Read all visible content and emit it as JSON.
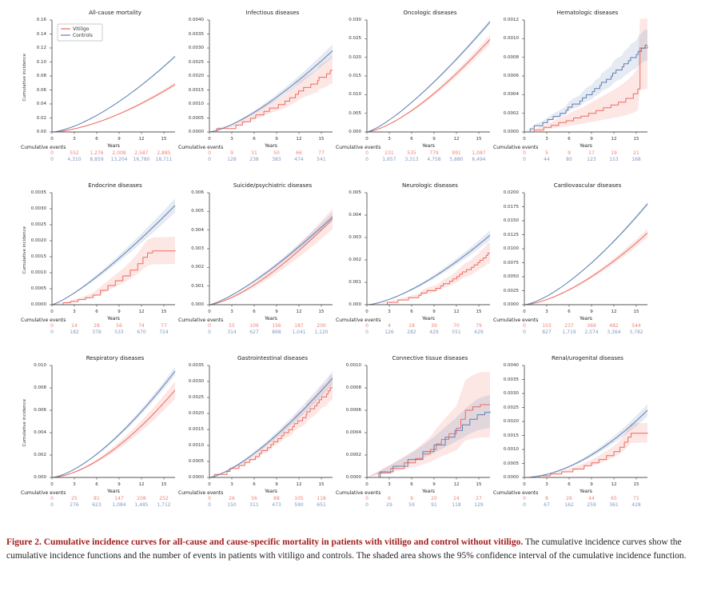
{
  "figure": {
    "caption_lead": "Figure 2. Cumulative incidence curves for all-cause and cause-specific mortality in patients with vitiligo and control without vitiligo.",
    "caption_body": " The cumulative incidence curves show the cumulative incidence functions and the number of events in patients with vitiligo and controls. The shaded area shows the 95% confidence interval of the cumulative incidence function."
  },
  "labels": {
    "ylabel": "Cumulative incidence",
    "xlabel": "Years",
    "events_label": "Cumulative events",
    "legend": [
      "Vitiligo",
      "Controls"
    ]
  },
  "colors": {
    "vitiligo": "#ee6a5f",
    "controls": "#5f7fb2",
    "vitiligo_fill": "rgba(238,106,95,0.16)",
    "controls_fill": "rgba(95,127,178,0.16)",
    "vitiligo_text": "#f0837b",
    "controls_text": "#8199c5",
    "caption_red": "#a41d1d",
    "axis": "#555555"
  },
  "chart_data": {
    "type": "line",
    "x_ticks": [
      0,
      3,
      6,
      9,
      12,
      15
    ],
    "x_max": 16.5,
    "panels": [
      {
        "title": "All-cause mortality",
        "ymax": 0.16,
        "ystep": 0.02,
        "ydecimals": 2,
        "legend": true,
        "series": [
          {
            "name": "Vitiligo",
            "shape": "smooth",
            "end": 0.068,
            "exp": 1.6,
            "ci": 0.04,
            "events": [
              "0",
              "552",
              "1,276",
              "2,008",
              "2,587",
              "2,885"
            ]
          },
          {
            "name": "Controls",
            "shape": "smooth",
            "end": 0.108,
            "exp": 1.5,
            "ci": 0.015,
            "events": [
              "0",
              "4,310",
              "8,859",
              "13,204",
              "16,780",
              "18,711"
            ]
          }
        ]
      },
      {
        "title": "Infectious diseases",
        "ymax": 0.004,
        "ystep": 0.0005,
        "ydecimals": 4,
        "legend": false,
        "series": [
          {
            "name": "Vitiligo",
            "shape": "step",
            "steps": 18,
            "end": 0.0022,
            "exp": 1.45,
            "ci": 0.22,
            "events": [
              "0",
              "9",
              "31",
              "50",
              "66",
              "77"
            ]
          },
          {
            "name": "Controls",
            "shape": "smooth",
            "end": 0.0029,
            "exp": 1.4,
            "ci": 0.08,
            "events": [
              "0",
              "128",
              "238",
              "383",
              "474",
              "541"
            ]
          }
        ]
      },
      {
        "title": "Oncologic diseases",
        "ymax": 0.03,
        "ystep": 0.005,
        "ydecimals": 3,
        "legend": false,
        "series": [
          {
            "name": "Vitiligo",
            "shape": "smooth",
            "end": 0.0248,
            "exp": 1.45,
            "ci": 0.05,
            "events": [
              "0",
              "231",
              "535",
              "779",
              "991",
              "1,087"
            ]
          },
          {
            "name": "Controls",
            "shape": "smooth",
            "end": 0.0295,
            "exp": 1.3,
            "ci": 0.02,
            "events": [
              "0",
              "1,657",
              "3,313",
              "4,758",
              "5,880",
              "6,494"
            ]
          }
        ]
      },
      {
        "title": "Hematologic diseases",
        "ymax": 0.0012,
        "ystep": 0.0002,
        "ydecimals": 4,
        "legend": false,
        "series": [
          {
            "name": "Vitiligo",
            "shape": "step",
            "ci": 0.5,
            "end": 0.00092,
            "points": [
              [
                0,
                0
              ],
              [
                1.3,
                2e-05
              ],
              [
                2.6,
                5e-05
              ],
              [
                3.6,
                7e-05
              ],
              [
                4.6,
                0.0001
              ],
              [
                5.6,
                0.00012
              ],
              [
                6.6,
                0.00015
              ],
              [
                7.6,
                0.00017
              ],
              [
                8.6,
                0.0002
              ],
              [
                9.6,
                0.00023
              ],
              [
                10.6,
                0.00026
              ],
              [
                11.6,
                0.00029
              ],
              [
                12.6,
                0.00032
              ],
              [
                13.6,
                0.00036
              ],
              [
                14.6,
                0.00041
              ],
              [
                15.2,
                0.00046
              ],
              [
                15.5,
                0.0009
              ],
              [
                16.5,
                0.00092
              ]
            ],
            "events": [
              "0",
              "5",
              "9",
              "17",
              "19",
              "21"
            ]
          },
          {
            "name": "Controls",
            "shape": "step",
            "steps": 28,
            "end": 0.00093,
            "exp": 1.3,
            "ci": 0.18,
            "events": [
              "0",
              "44",
              "80",
              "123",
              "153",
              "168"
            ]
          }
        ]
      },
      {
        "title": "Endocrine diseases",
        "ymax": 0.0035,
        "ystep": 0.0005,
        "ydecimals": 4,
        "legend": false,
        "series": [
          {
            "name": "Vitiligo",
            "shape": "step",
            "ci": 0.25,
            "end": 0.0017,
            "points": [
              [
                0,
                0
              ],
              [
                1.5,
                6e-05
              ],
              [
                2.5,
                0.0001
              ],
              [
                3.5,
                0.00016
              ],
              [
                4.5,
                0.00022
              ],
              [
                5.5,
                0.0003
              ],
              [
                6.5,
                0.00045
              ],
              [
                7.5,
                0.0006
              ],
              [
                8.5,
                0.00075
              ],
              [
                9.5,
                0.0009
              ],
              [
                10.5,
                0.00108
              ],
              [
                11.5,
                0.00128
              ],
              [
                12.2,
                0.00148
              ],
              [
                12.8,
                0.00162
              ],
              [
                13.5,
                0.00168
              ],
              [
                16.5,
                0.0017
              ]
            ],
            "events": [
              "0",
              "14",
              "28",
              "56",
              "74",
              "77"
            ]
          },
          {
            "name": "Controls",
            "shape": "smooth",
            "end": 0.0031,
            "exp": 1.25,
            "ci": 0.07,
            "events": [
              "0",
              "182",
              "378",
              "533",
              "670",
              "724"
            ]
          }
        ]
      },
      {
        "title": "Suicide/psychiatric diseases",
        "ymax": 0.006,
        "ystep": 0.001,
        "ydecimals": 3,
        "legend": false,
        "series": [
          {
            "name": "Vitiligo",
            "shape": "smooth",
            "end": 0.0046,
            "exp": 1.45,
            "ci": 0.12,
            "events": [
              "0",
              "55",
              "109",
              "156",
              "187",
              "200"
            ]
          },
          {
            "name": "Controls",
            "shape": "smooth",
            "end": 0.0047,
            "exp": 1.3,
            "ci": 0.05,
            "events": [
              "0",
              "314",
              "627",
              "868",
              "1,041",
              "1,120"
            ]
          }
        ]
      },
      {
        "title": "Neurologic diseases",
        "ymax": 0.005,
        "ystep": 0.001,
        "ydecimals": 3,
        "legend": false,
        "series": [
          {
            "name": "Vitiligo",
            "shape": "step",
            "steps": 22,
            "end": 0.0023,
            "exp": 2.0,
            "ci": 0.2,
            "events": [
              "0",
              "4",
              "18",
              "39",
              "70",
              "79"
            ]
          },
          {
            "name": "Controls",
            "shape": "smooth",
            "end": 0.0031,
            "exp": 1.5,
            "ci": 0.07,
            "events": [
              "0",
              "126",
              "282",
              "429",
              "551",
              "629"
            ]
          }
        ]
      },
      {
        "title": "Cardiovascular diseases",
        "ymax": 0.02,
        "ystep": 0.0025,
        "ydecimals": 4,
        "legend": false,
        "series": [
          {
            "name": "Vitiligo",
            "shape": "smooth",
            "end": 0.0128,
            "exp": 1.55,
            "ci": 0.06,
            "events": [
              "0",
              "103",
              "237",
              "369",
              "482",
              "544"
            ]
          },
          {
            "name": "Controls",
            "shape": "smooth",
            "end": 0.018,
            "exp": 1.45,
            "ci": 0.02,
            "events": [
              "0",
              "827",
              "1,719",
              "2,574",
              "3,364",
              "3,782"
            ]
          }
        ]
      },
      {
        "title": "Respiratory diseases",
        "ymax": 0.01,
        "ystep": 0.002,
        "ydecimals": 3,
        "legend": false,
        "series": [
          {
            "name": "Vitiligo",
            "shape": "smooth",
            "end": 0.0078,
            "exp": 1.65,
            "ci": 0.1,
            "events": [
              "0",
              "25",
              "81",
              "147",
              "208",
              "252"
            ]
          },
          {
            "name": "Controls",
            "shape": "smooth",
            "end": 0.0095,
            "exp": 1.5,
            "ci": 0.04,
            "events": [
              "0",
              "276",
              "623",
              "1,084",
              "1,485",
              "1,712"
            ]
          }
        ]
      },
      {
        "title": "Gastrointestinal diseases",
        "ymax": 0.0035,
        "ystep": 0.0005,
        "ydecimals": 4,
        "legend": false,
        "series": [
          {
            "name": "Vitiligo",
            "shape": "step",
            "steps": 30,
            "end": 0.0028,
            "exp": 1.5,
            "ci": 0.14,
            "events": [
              "0",
              "26",
              "56",
              "88",
              "105",
              "118"
            ]
          },
          {
            "name": "Controls",
            "shape": "smooth",
            "end": 0.0031,
            "exp": 1.4,
            "ci": 0.07,
            "events": [
              "0",
              "150",
              "311",
              "473",
              "590",
              "651"
            ]
          }
        ]
      },
      {
        "title": "Connective tissue diseases",
        "ymax": 0.001,
        "ystep": 0.0002,
        "ydecimals": 4,
        "legend": false,
        "series": [
          {
            "name": "Vitiligo",
            "shape": "step",
            "ci": 0.45,
            "end": 0.00065,
            "points": [
              [
                0,
                0
              ],
              [
                1.6,
                4e-05
              ],
              [
                3.2,
                8e-05
              ],
              [
                5,
                0.00013
              ],
              [
                6.5,
                0.00017
              ],
              [
                7.5,
                0.00021
              ],
              [
                8.5,
                0.00025
              ],
              [
                9.3,
                0.0003
              ],
              [
                10,
                0.00034
              ],
              [
                11,
                0.00039
              ],
              [
                12,
                0.00044
              ],
              [
                12.6,
                0.00052
              ],
              [
                13.2,
                0.0006
              ],
              [
                14.2,
                0.00063
              ],
              [
                15.2,
                0.00065
              ],
              [
                16.5,
                0.00065
              ]
            ],
            "events": [
              "0",
              "6",
              "9",
              "20",
              "24",
              "27"
            ]
          },
          {
            "name": "Controls",
            "shape": "step",
            "ci": 0.25,
            "end": 0.00059,
            "points": [
              [
                0,
                0
              ],
              [
                1.8,
                5e-05
              ],
              [
                3.5,
                0.0001
              ],
              [
                5.5,
                0.00016
              ],
              [
                7.5,
                0.00023
              ],
              [
                9,
                0.00029
              ],
              [
                10.5,
                0.00036
              ],
              [
                11.8,
                0.00042
              ],
              [
                12.8,
                0.00047
              ],
              [
                13.8,
                0.00052
              ],
              [
                14.8,
                0.00056
              ],
              [
                15.8,
                0.00058
              ],
              [
                16.5,
                0.00059
              ]
            ],
            "events": [
              "0",
              "29",
              "59",
              "91",
              "118",
              "129"
            ]
          }
        ]
      },
      {
        "title": "Renal/urogenital diseases",
        "ymax": 0.004,
        "ystep": 0.0005,
        "ydecimals": 4,
        "legend": false,
        "series": [
          {
            "name": "Vitiligo",
            "shape": "step",
            "ci": 0.22,
            "end": 0.0016,
            "points": [
              [
                0,
                0
              ],
              [
                2,
                6e-05
              ],
              [
                3.5,
                0.00012
              ],
              [
                5,
                0.0002
              ],
              [
                6.5,
                0.0003
              ],
              [
                8,
                0.00042
              ],
              [
                9,
                0.00052
              ],
              [
                10,
                0.00064
              ],
              [
                11,
                0.00078
              ],
              [
                12,
                0.00092
              ],
              [
                12.8,
                0.00108
              ],
              [
                13.4,
                0.00126
              ],
              [
                13.9,
                0.00144
              ],
              [
                14.3,
                0.00158
              ],
              [
                16.5,
                0.0016
              ]
            ],
            "events": [
              "0",
              "8",
              "26",
              "44",
              "65",
              "71"
            ]
          },
          {
            "name": "Controls",
            "shape": "smooth",
            "end": 0.0024,
            "exp": 1.8,
            "ci": 0.09,
            "events": [
              "0",
              "67",
              "162",
              "259",
              "361",
              "428"
            ]
          }
        ]
      }
    ]
  }
}
